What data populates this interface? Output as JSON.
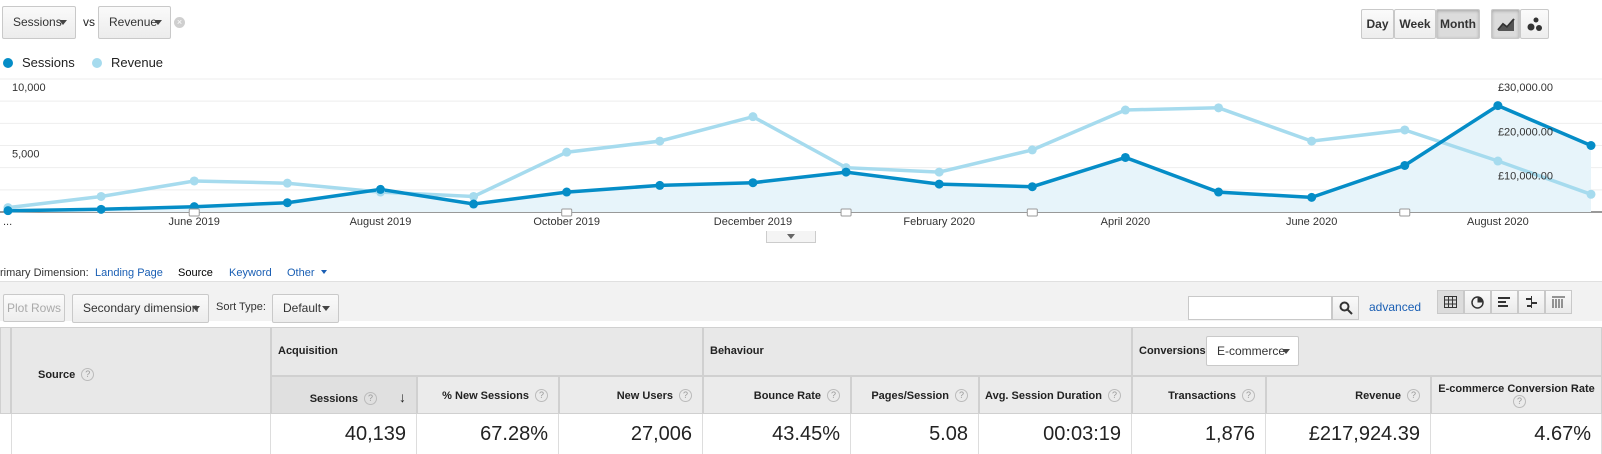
{
  "metric_selector": {
    "primary": "Sessions",
    "vs_label": "vs",
    "secondary": "Revenue"
  },
  "granularity": {
    "day": "Day",
    "week": "Week",
    "month": "Month",
    "selected": "Month"
  },
  "legend": {
    "sessions": "Sessions",
    "revenue": "Revenue"
  },
  "colors": {
    "sessions": "#058dc7",
    "revenue": "#a6dbee",
    "area": "#e7f4fa"
  },
  "chart_data": {
    "type": "line",
    "x": [
      "...",
      "",
      "June 2019",
      "",
      "August 2019",
      "",
      "October 2019",
      "",
      "December 2019",
      "",
      "February 2020",
      "",
      "April 2020",
      "",
      "June 2020",
      "",
      "August 2020",
      ""
    ],
    "x_tick_labels": [
      "...",
      "June 2019",
      "August 2019",
      "October 2019",
      "December 2019",
      "February 2020",
      "April 2020",
      "June 2020",
      "August 2020"
    ],
    "y_left_ticks": [
      "10,000",
      "5,000"
    ],
    "y_right_ticks": [
      "£30,000.00",
      "£20,000.00",
      "£10,000.00"
    ],
    "y_left_range": [
      0,
      10000
    ],
    "y_right_range": [
      0,
      30000
    ],
    "series": [
      {
        "name": "Sessions",
        "axis": "left",
        "values": [
          100,
          200,
          400,
          700,
          1700,
          600,
          1500,
          2000,
          2200,
          3000,
          2100,
          1900,
          4100,
          1500,
          1100,
          3500,
          8000,
          5000
        ]
      },
      {
        "name": "Revenue",
        "axis": "right",
        "values": [
          1000,
          3500,
          7000,
          6500,
          4500,
          3500,
          13500,
          16000,
          21500,
          10000,
          9000,
          14000,
          23000,
          23500,
          16000,
          18500,
          11500,
          4000
        ]
      }
    ],
    "grid": true
  },
  "dimension_bar": {
    "label": "rimary Dimension:",
    "items": [
      "Landing Page",
      "Source",
      "Keyword",
      "Other"
    ],
    "selected": "Source"
  },
  "toolbar": {
    "plot_rows": "Plot Rows",
    "secondary_dimension": "Secondary dimension",
    "sort_type_label": "Sort Type:",
    "sort_type_value": "Default",
    "search_placeholder": "",
    "advanced": "advanced"
  },
  "table": {
    "source_header": "Source",
    "groups": {
      "acquisition": "Acquisition",
      "behaviour": "Behaviour",
      "conversions": "Conversions",
      "conversion_select": "E-commerce"
    },
    "columns": [
      "Sessions",
      "% New Sessions",
      "New Users",
      "Bounce Rate",
      "Pages/Session",
      "Avg. Session Duration",
      "Transactions",
      "Revenue",
      "E-commerce Conversion Rate"
    ],
    "totals": [
      "40,139",
      "67.28%",
      "27,006",
      "43.45%",
      "5.08",
      "00:03:19",
      "1,876",
      "£217,924.39",
      "4.67%"
    ]
  }
}
